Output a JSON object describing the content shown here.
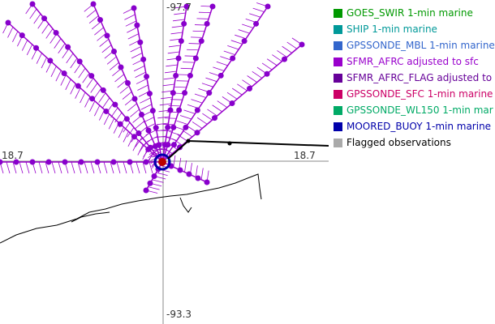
{
  "colors": {
    "track": "#9900cc",
    "track_dot": "#8800cc",
    "coast": "#000000",
    "grid": "#888888",
    "buoy_ring": "#0000aa",
    "buoy_dot": "#bb0000"
  },
  "axis_labels": {
    "top": "-97.7",
    "bottom": "-93.3",
    "left": "18.7",
    "right": "18.7"
  },
  "legend": [
    {
      "label": "GOES_SWIR 1-min marine",
      "color": "#009900",
      "text_color": "#009900"
    },
    {
      "label": "SHIP 1-min marine",
      "color": "#009999",
      "text_color": "#009999"
    },
    {
      "label": "GPSSONDE_MBL 1-min marine",
      "color": "#3366cc",
      "text_color": "#3366cc"
    },
    {
      "label": "SFMR_AFRC adjusted to sfc",
      "color": "#9900cc",
      "text_color": "#9900cc"
    },
    {
      "label": "SFMR_AFRC_FLAG adjusted to",
      "color": "#660099",
      "text_color": "#660099"
    },
    {
      "label": "GPSSONDE_SFC 1-min marine",
      "color": "#cc0066",
      "text_color": "#cc0066"
    },
    {
      "label": "GPSSONDE_WL150 1-min mar",
      "color": "#00aa66",
      "text_color": "#00aa66"
    },
    {
      "label": "MOORED_BUOY 1-min marine",
      "color": "#0000aa",
      "text_color": "#0000aa"
    },
    {
      "label": "Flagged observations",
      "color": "#aaaaaa",
      "text_color": "#000000"
    }
  ]
}
